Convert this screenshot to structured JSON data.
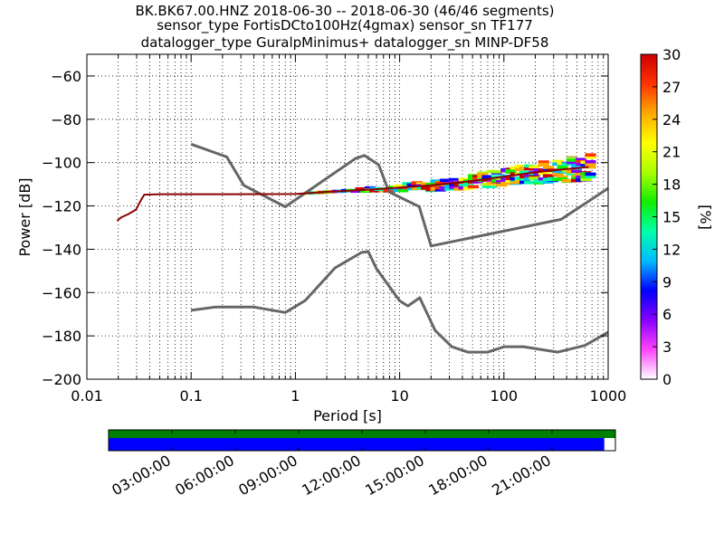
{
  "title_lines": [
    "BK.BK67.00.HNZ   2018-06-30 -- 2018-06-30  (46/46 segments)",
    "sensor_type FortisDCto100Hz(4gmax) sensor_sn TF177",
    "datalogger_type GuralpMinimus+ datalogger_sn MINP-DF58"
  ],
  "chart_data": {
    "type": "line",
    "xlabel": "Period [s]",
    "ylabel": "Power [dB]",
    "x_scale": "log",
    "xlim": [
      0.01,
      1000
    ],
    "ylim": [
      -200,
      -50
    ],
    "x_ticks": [
      {
        "value": 0.01,
        "label": "0.01"
      },
      {
        "value": 0.1,
        "label": "0.1"
      },
      {
        "value": 1,
        "label": "1"
      },
      {
        "value": 10,
        "label": "10"
      },
      {
        "value": 100,
        "label": "100"
      },
      {
        "value": 1000,
        "label": "1000"
      }
    ],
    "y_ticks": [
      {
        "value": -60,
        "label": "−60"
      },
      {
        "value": -80,
        "label": "−80"
      },
      {
        "value": -100,
        "label": "−100"
      },
      {
        "value": -120,
        "label": "−120"
      },
      {
        "value": -140,
        "label": "−140"
      },
      {
        "value": -160,
        "label": "−160"
      },
      {
        "value": -180,
        "label": "−180"
      },
      {
        "value": -200,
        "label": "−200"
      }
    ],
    "grid": true,
    "series": [
      {
        "color": "#666666",
        "points": [
          [
            0.1,
            -91.5
          ],
          [
            0.22,
            -97.4
          ],
          [
            0.32,
            -110.5
          ],
          [
            0.8,
            -120.4
          ],
          [
            3.8,
            -98.0
          ],
          [
            4.6,
            -96.7
          ],
          [
            6.3,
            -101.0
          ],
          [
            7.9,
            -113.5
          ],
          [
            15.4,
            -120.3
          ],
          [
            20,
            -138.5
          ],
          [
            354,
            -126.2
          ],
          [
            1000,
            -111.9
          ]
        ]
      },
      {
        "color": "#666666",
        "points": [
          [
            0.1,
            -168.2
          ],
          [
            0.17,
            -166.7
          ],
          [
            0.4,
            -166.7
          ],
          [
            0.8,
            -169.2
          ],
          [
            1.24,
            -163.7
          ],
          [
            2.4,
            -148.6
          ],
          [
            4.3,
            -141.5
          ],
          [
            5.0,
            -141.1
          ],
          [
            6.0,
            -149.0
          ],
          [
            10,
            -163.8
          ],
          [
            12,
            -166.2
          ],
          [
            15.6,
            -162.4
          ],
          [
            21.9,
            -177.5
          ],
          [
            31.6,
            -185.0
          ],
          [
            45,
            -187.5
          ],
          [
            70,
            -187.5
          ],
          [
            101,
            -185.0
          ],
          [
            154,
            -185.0
          ],
          [
            328,
            -187.5
          ],
          [
            600,
            -184.4
          ],
          [
            1000,
            -178.3
          ]
        ]
      },
      {
        "color": "#8b0000",
        "points": [
          [
            0.0195,
            -126.8
          ],
          [
            0.0215,
            -125.2
          ],
          [
            0.025,
            -123.8
          ],
          [
            0.0295,
            -121.8
          ],
          [
            0.033,
            -117.4
          ],
          [
            0.0355,
            -114.8
          ],
          [
            0.05,
            -114.6
          ],
          [
            0.2,
            -114.6
          ],
          [
            1.0,
            -114.5
          ],
          [
            2.0,
            -113.5
          ],
          [
            5.0,
            -112.5
          ],
          [
            10,
            -111.5
          ],
          [
            20,
            -110.5
          ],
          [
            50,
            -108.5
          ],
          [
            100,
            -106.5
          ],
          [
            200,
            -104.5
          ],
          [
            400,
            -103.0
          ],
          [
            650,
            -102.0
          ]
        ]
      }
    ],
    "colorbar": {
      "label": "[%]",
      "min": 0,
      "max": 30,
      "ticks": [
        {
          "value": 0,
          "label": "0"
        },
        {
          "value": 3,
          "label": "3"
        },
        {
          "value": 6,
          "label": "6"
        },
        {
          "value": 9,
          "label": "9"
        },
        {
          "value": 12,
          "label": "12"
        },
        {
          "value": 15,
          "label": "15"
        },
        {
          "value": 18,
          "label": "18"
        },
        {
          "value": 21,
          "label": "21"
        },
        {
          "value": 24,
          "label": "24"
        },
        {
          "value": 27,
          "label": "27"
        },
        {
          "value": 30,
          "label": "30"
        }
      ],
      "colors": [
        "#ffffff",
        "#ff44ff",
        "#8800ff",
        "#0000ff",
        "#00bbff",
        "#00ffaa",
        "#11ee00",
        "#aaff00",
        "#ffff00",
        "#ffaa00",
        "#ff3300",
        "#cc0000"
      ]
    },
    "coverage": {
      "time_ticks": [
        "03:00:00",
        "06:00:00",
        "09:00:00",
        "12:00:00",
        "15:00:00",
        "18:00:00",
        "21:00:00"
      ],
      "tick_fractions": [
        0.125,
        0.25,
        0.375,
        0.5,
        0.625,
        0.75,
        0.875
      ],
      "data_fraction": 0.978,
      "top_color": "#008000",
      "bottom_color": "#0000ff"
    }
  }
}
